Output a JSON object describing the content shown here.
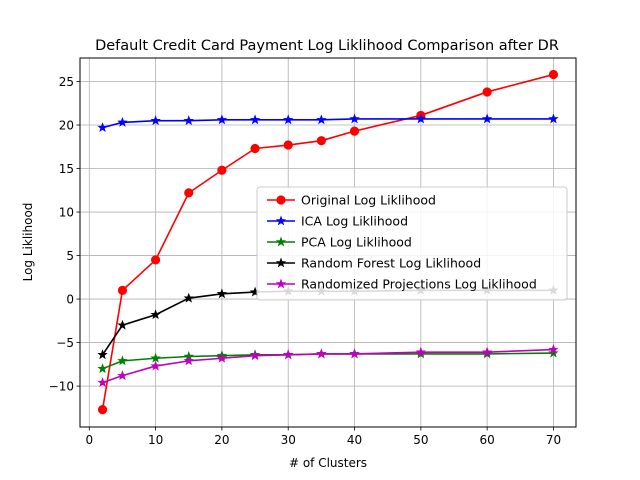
{
  "chart_data": {
    "type": "line",
    "title": "Default Credit Card Payment Log Liklihood Comparison after DR",
    "xlabel": "# of Clusters",
    "ylabel": "Log Liklihood",
    "xlim": [
      -1.4,
      73.4
    ],
    "ylim": [
      -14.7,
      27.7
    ],
    "xticks": [
      0,
      10,
      20,
      30,
      40,
      50,
      60,
      70
    ],
    "yticks": [
      -10,
      -5,
      0,
      5,
      10,
      15,
      20,
      25
    ],
    "grid": true,
    "legend_position": "center-right",
    "x": [
      2,
      5,
      10,
      15,
      20,
      25,
      30,
      35,
      40,
      50,
      60,
      70
    ],
    "series": [
      {
        "name": "Original Log Liklihood",
        "color": "#ff0000",
        "marker": "circle",
        "values": [
          -12.7,
          1.0,
          4.5,
          12.2,
          14.8,
          17.3,
          17.7,
          18.2,
          19.3,
          21.1,
          23.8,
          25.8
        ]
      },
      {
        "name": "ICA Log Liklihood",
        "color": "#0000ff",
        "marker": "star",
        "values": [
          19.7,
          20.3,
          20.5,
          20.5,
          20.6,
          20.6,
          20.6,
          20.6,
          20.7,
          20.7,
          20.7,
          20.7
        ]
      },
      {
        "name": "PCA Log Liklihood",
        "color": "#008000",
        "marker": "star",
        "values": [
          -8.0,
          -7.1,
          -6.8,
          -6.6,
          -6.5,
          -6.4,
          -6.4,
          -6.3,
          -6.3,
          -6.3,
          -6.3,
          -6.2
        ]
      },
      {
        "name": "Random Forest Log Liklihood",
        "color": "#000000",
        "marker": "star",
        "values": [
          -6.4,
          -3.0,
          -1.8,
          0.1,
          0.6,
          0.8,
          0.9,
          0.9,
          0.9,
          1.0,
          1.0,
          1.0
        ]
      },
      {
        "name": "Randomized Projections Log Liklihood",
        "color": "#bf00bf",
        "marker": "star",
        "values": [
          -9.6,
          -8.8,
          -7.7,
          -7.1,
          -6.8,
          -6.5,
          -6.4,
          -6.3,
          -6.3,
          -6.1,
          -6.1,
          -5.8
        ]
      }
    ]
  }
}
